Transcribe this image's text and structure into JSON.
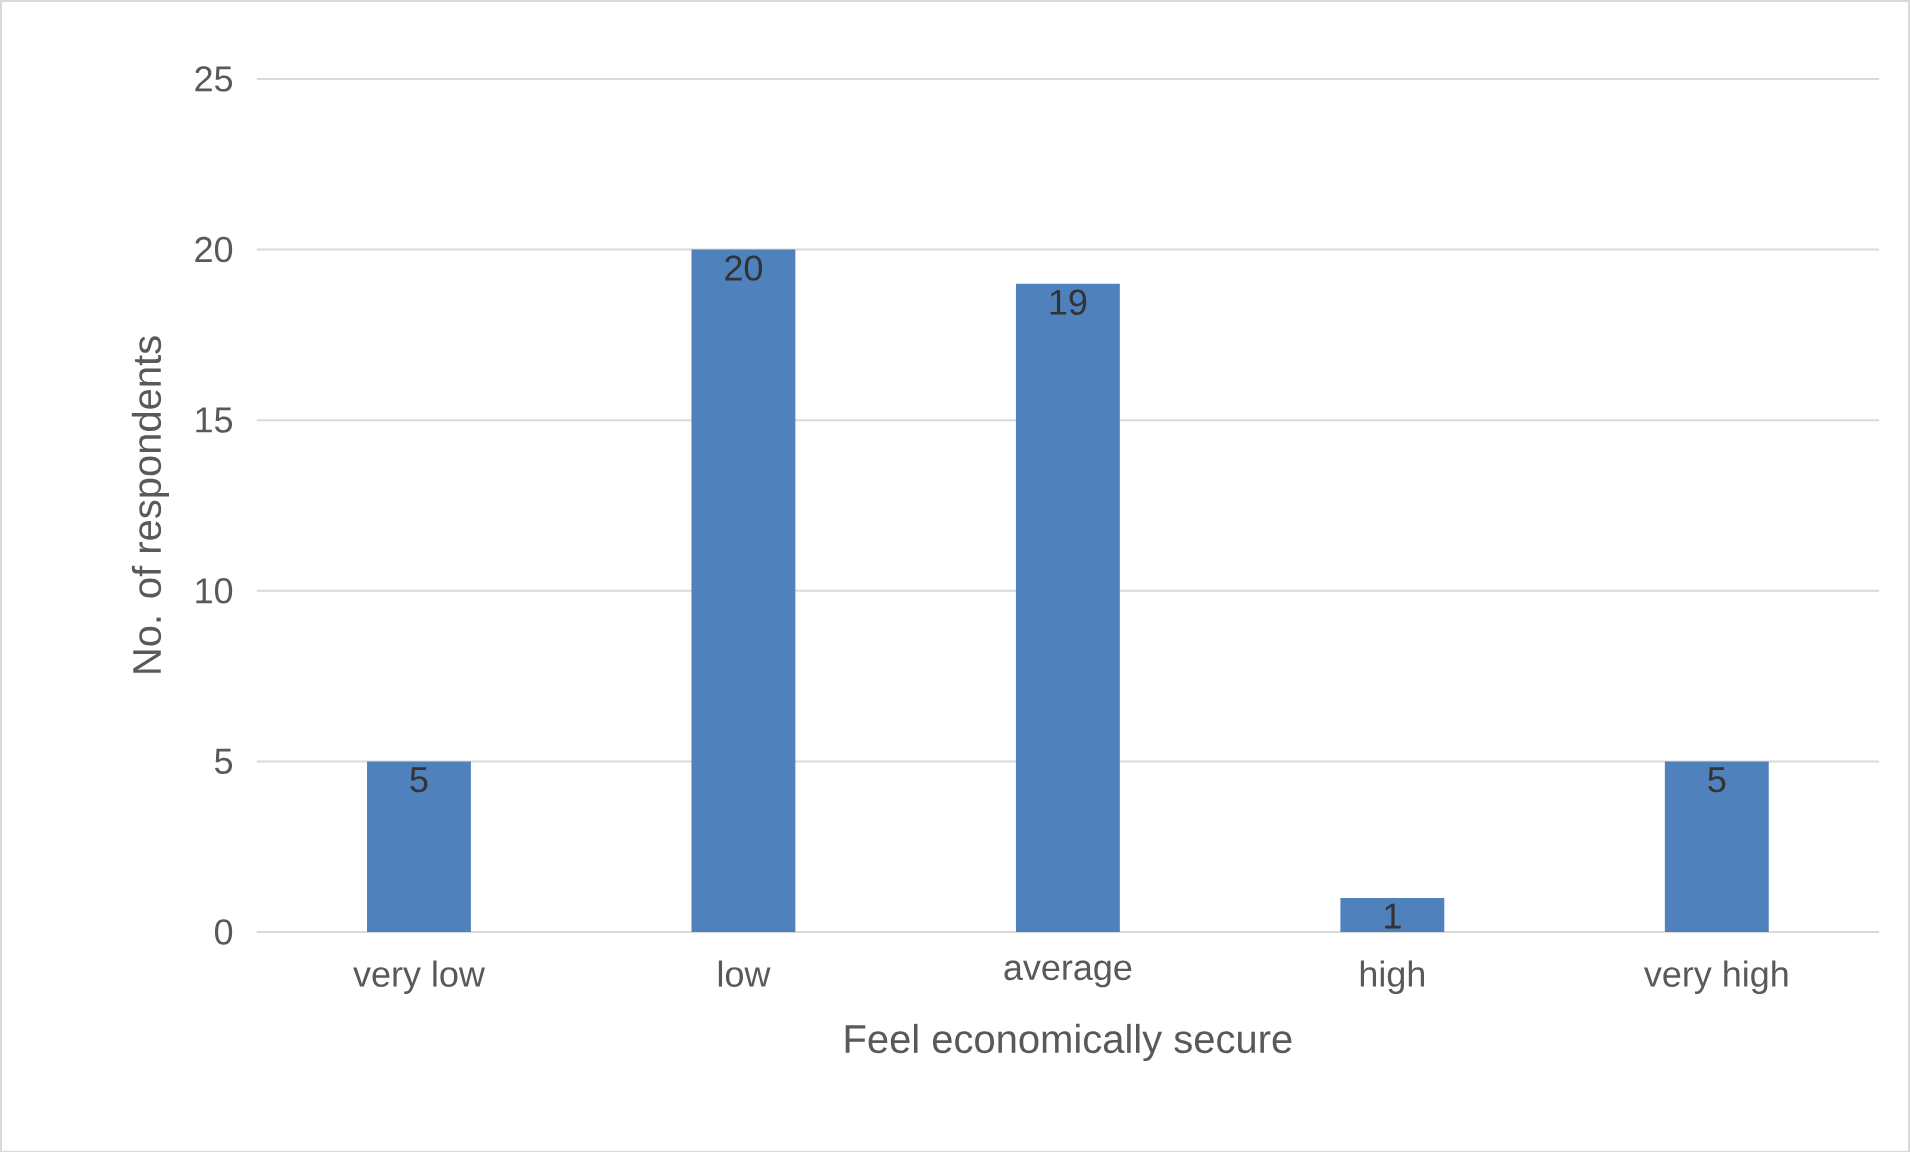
{
  "chart_data": {
    "type": "bar",
    "xlabel": "Feel economically secure",
    "ylabel": "No. of respondents",
    "categories": [
      "very low",
      "low",
      "average",
      "high",
      "very high"
    ],
    "values": [
      5,
      20,
      19,
      1,
      5
    ],
    "color": "#4f81bd",
    "ylim": [
      0,
      25
    ],
    "yticks": [
      0,
      5,
      10,
      15,
      20,
      25
    ],
    "grid": "y",
    "data_labels": true
  }
}
